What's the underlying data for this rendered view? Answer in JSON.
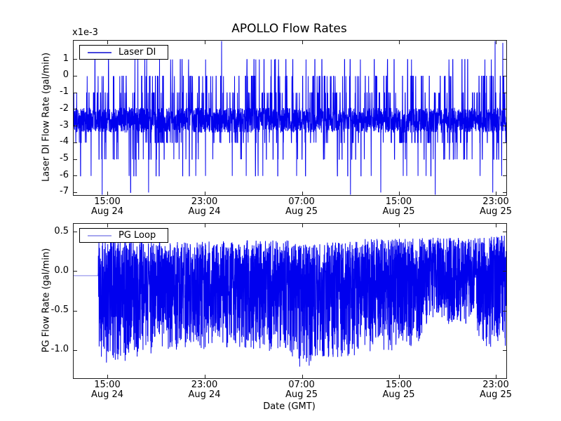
{
  "figure": {
    "title": "APOLLO Flow Rates",
    "background": "#ffffff",
    "line_color": "#0000ee"
  },
  "chart_data": [
    {
      "type": "line",
      "title": "APOLLO Flow Rates",
      "series": [
        {
          "name": "Laser DI",
          "color": "#0000ee",
          "legend_sample_color": "#4646dd"
        }
      ],
      "ylabel": "Laser DI Flow Rate (gal/min)",
      "y_offset_text": "x1e-3",
      "ylim": [
        -7.15,
        2.13
      ],
      "yticks": [
        {
          "v": 1,
          "label": "1"
        },
        {
          "v": 0,
          "label": "0"
        },
        {
          "v": -1,
          "label": "-1"
        },
        {
          "v": -2,
          "label": "-2"
        },
        {
          "v": -3,
          "label": "-3"
        },
        {
          "v": -4,
          "label": "-4"
        },
        {
          "v": -5,
          "label": "-5"
        },
        {
          "v": -6,
          "label": "-6"
        },
        {
          "v": -7,
          "label": "-7"
        }
      ],
      "xticks": [
        {
          "frac": 0.0794,
          "time": "15:00",
          "date": "Aug 24"
        },
        {
          "frac": 0.3039,
          "time": "23:00",
          "date": "Aug 24"
        },
        {
          "frac": 0.5284,
          "time": "07:00",
          "date": "Aug 25"
        },
        {
          "frac": 0.7528,
          "time": "15:00",
          "date": "Aug 25"
        },
        {
          "frac": 0.9773,
          "time": "23:00",
          "date": "Aug 25"
        }
      ],
      "legend_position": "upper left",
      "grid": false,
      "units_note": "y values are x1e-3 gal/min, quantized at 0.001 steps",
      "signal": {
        "kind": "quantized_noise",
        "seed": 1234567,
        "n": 3200,
        "band": [
          -3.4,
          -1.9
        ],
        "spike_levels": [
          {
            "v": 1,
            "p": 0.012
          },
          {
            "v": 0,
            "p": 0.043
          },
          {
            "v": -1,
            "p": 0.037
          },
          {
            "v": -4,
            "p": 0.037
          },
          {
            "v": -5,
            "p": 0.017
          },
          {
            "v": -6,
            "p": 0.009
          },
          {
            "v": -7,
            "p": 0.0012
          }
        ],
        "tall_spikes": [
          {
            "frac": 0.342,
            "v": 2.13
          },
          {
            "frac": 0.974,
            "v": 2.13
          },
          {
            "frac": 0.992,
            "v": 2.0
          }
        ],
        "deep_dips": [
          {
            "frac": 0.066,
            "v": -7.15
          },
          {
            "frac": 0.64,
            "v": -7.15
          },
          {
            "frac": 0.836,
            "v": -7.15
          }
        ]
      }
    },
    {
      "type": "line",
      "series": [
        {
          "name": "PG Loop",
          "color": "#0000ee",
          "legend_sample_color": "#a6a6ef"
        }
      ],
      "ylabel": "PG Flow Rate (gal/min)",
      "xlabel": "Date (GMT)",
      "ylim": [
        -1.357,
        0.607
      ],
      "yticks": [
        {
          "v": 0.5,
          "label": "0.5"
        },
        {
          "v": 0.0,
          "label": "0.0"
        },
        {
          "v": -0.5,
          "label": "-0.5"
        },
        {
          "v": -1.0,
          "label": "-1.0"
        }
      ],
      "xticks": [
        {
          "frac": 0.0794,
          "time": "15:00",
          "date": "Aug 24"
        },
        {
          "frac": 0.3039,
          "time": "23:00",
          "date": "Aug 24"
        },
        {
          "frac": 0.5284,
          "time": "07:00",
          "date": "Aug 25"
        },
        {
          "frac": 0.7528,
          "time": "15:00",
          "date": "Aug 25"
        },
        {
          "frac": 0.9773,
          "time": "23:00",
          "date": "Aug 25"
        }
      ],
      "legend_position": "upper left",
      "grid": false,
      "signal": {
        "kind": "segmented_noise",
        "seed": 424211,
        "n": 3800,
        "bias_exp": 0.72,
        "flat": {
          "to_frac": 0.0567,
          "value": -0.053,
          "color": "#9a9aee"
        },
        "segments": [
          {
            "from": 0.0567,
            "to": 0.16,
            "lo": -1.17,
            "hi": 0.42
          },
          {
            "from": 0.16,
            "to": 0.3,
            "lo": -1.05,
            "hi": 0.38
          },
          {
            "from": 0.3,
            "to": 0.5,
            "lo": -1.02,
            "hi": 0.4
          },
          {
            "from": 0.5,
            "to": 0.57,
            "lo": -1.22,
            "hi": 0.35
          },
          {
            "from": 0.57,
            "to": 0.66,
            "lo": -1.12,
            "hi": 0.38
          },
          {
            "from": 0.66,
            "to": 0.805,
            "lo": -1.02,
            "hi": 0.42
          },
          {
            "from": 0.805,
            "to": 0.93,
            "lo": -0.68,
            "hi": 0.43
          },
          {
            "from": 0.93,
            "to": 1.0,
            "lo": -0.97,
            "hi": 0.46
          }
        ]
      }
    }
  ]
}
